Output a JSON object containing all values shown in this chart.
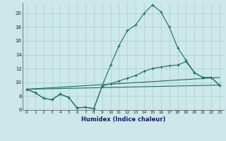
{
  "xlabel": "Humidex (Indice chaleur)",
  "bg_color": "#cce8e8",
  "grid_color": "#aacece",
  "line_color": "#1a6e6a",
  "xlim": [
    -0.5,
    23.5
  ],
  "ylim": [
    6,
    21.5
  ],
  "yticks": [
    6,
    8,
    10,
    12,
    14,
    16,
    18,
    20
  ],
  "xticks": [
    0,
    1,
    2,
    3,
    4,
    5,
    6,
    7,
    8,
    9,
    10,
    11,
    12,
    13,
    14,
    15,
    16,
    17,
    18,
    19,
    20,
    21,
    22,
    23
  ],
  "line1_x": [
    0,
    1,
    2,
    3,
    4,
    5,
    6,
    7,
    8,
    9,
    10,
    11,
    12,
    13,
    14,
    15,
    16,
    17,
    18,
    19,
    20,
    21,
    22,
    23
  ],
  "line1_y": [
    9.0,
    8.5,
    7.7,
    7.5,
    8.3,
    7.8,
    6.3,
    6.4,
    6.2,
    9.5,
    12.5,
    15.3,
    17.5,
    18.3,
    20.0,
    21.2,
    20.2,
    18.0,
    15.0,
    13.2,
    11.4,
    10.7,
    10.7,
    9.6
  ],
  "line2_x": [
    0,
    1,
    2,
    3,
    4,
    5,
    6,
    7,
    8,
    9,
    10,
    11,
    12,
    13,
    14,
    15,
    16,
    17,
    18,
    19,
    20,
    21,
    22,
    23
  ],
  "line2_y": [
    9.0,
    8.5,
    7.7,
    7.5,
    8.3,
    7.8,
    6.3,
    6.4,
    6.2,
    9.5,
    9.8,
    10.2,
    10.6,
    11.0,
    11.6,
    12.0,
    12.2,
    12.4,
    12.5,
    13.0,
    11.4,
    10.7,
    10.7,
    9.6
  ],
  "line3_x": [
    0,
    23
  ],
  "line3_y": [
    9.0,
    9.6
  ],
  "line4_x": [
    0,
    23
  ],
  "line4_y": [
    9.0,
    10.7
  ]
}
